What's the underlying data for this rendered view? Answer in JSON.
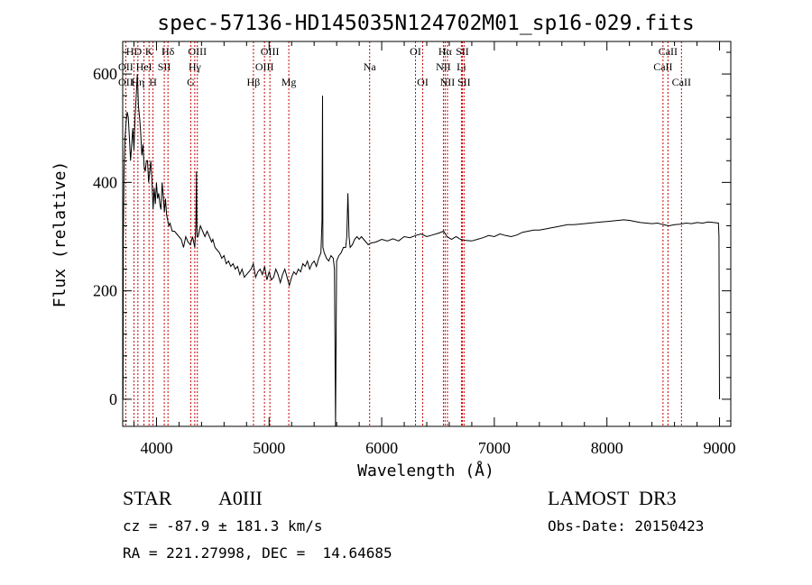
{
  "chart_data": {
    "type": "line",
    "title": "spec-57136-HD145035N124702M01_sp16-029.fits",
    "xlabel": "Wavelength (Å)",
    "ylabel": "Flux (relative)",
    "xlim": [
      3700,
      9100
    ],
    "ylim": [
      -50,
      660
    ],
    "x_ticks": [
      4000,
      5000,
      6000,
      7000,
      8000,
      9000
    ],
    "y_ticks": [
      0,
      200,
      400,
      600
    ],
    "series": [
      {
        "points": [
          [
            3700,
            60
          ],
          [
            3703,
            0
          ],
          [
            3706,
            300
          ],
          [
            3712,
            420
          ],
          [
            3720,
            480
          ],
          [
            3730,
            510
          ],
          [
            3740,
            530
          ],
          [
            3750,
            520
          ],
          [
            3760,
            480
          ],
          [
            3770,
            440
          ],
          [
            3780,
            470
          ],
          [
            3790,
            500
          ],
          [
            3800,
            460
          ],
          [
            3810,
            520
          ],
          [
            3820,
            560
          ],
          [
            3830,
            600
          ],
          [
            3840,
            540
          ],
          [
            3850,
            520
          ],
          [
            3860,
            490
          ],
          [
            3870,
            450
          ],
          [
            3880,
            470
          ],
          [
            3890,
            430
          ],
          [
            3900,
            420
          ],
          [
            3910,
            440
          ],
          [
            3920,
            440
          ],
          [
            3930,
            400
          ],
          [
            3940,
            420
          ],
          [
            3950,
            440
          ],
          [
            3960,
            400
          ],
          [
            3970,
            350
          ],
          [
            3980,
            390
          ],
          [
            3990,
            360
          ],
          [
            4000,
            400
          ],
          [
            4010,
            370
          ],
          [
            4020,
            380
          ],
          [
            4030,
            360
          ],
          [
            4040,
            350
          ],
          [
            4050,
            400
          ],
          [
            4060,
            375
          ],
          [
            4070,
            345
          ],
          [
            4080,
            370
          ],
          [
            4090,
            340
          ],
          [
            4100,
            330
          ],
          [
            4110,
            320
          ],
          [
            4120,
            325
          ],
          [
            4140,
            310
          ],
          [
            4160,
            310
          ],
          [
            4180,
            305
          ],
          [
            4200,
            300
          ],
          [
            4220,
            295
          ],
          [
            4240,
            280
          ],
          [
            4260,
            300
          ],
          [
            4280,
            290
          ],
          [
            4300,
            285
          ],
          [
            4320,
            300
          ],
          [
            4340,
            280
          ],
          [
            4350,
            320
          ],
          [
            4355,
            420
          ],
          [
            4360,
            300
          ],
          [
            4370,
            300
          ],
          [
            4390,
            320
          ],
          [
            4410,
            310
          ],
          [
            4430,
            300
          ],
          [
            4450,
            310
          ],
          [
            4470,
            300
          ],
          [
            4490,
            290
          ],
          [
            4500,
            295
          ],
          [
            4520,
            280
          ],
          [
            4540,
            275
          ],
          [
            4560,
            270
          ],
          [
            4580,
            260
          ],
          [
            4600,
            265
          ],
          [
            4620,
            250
          ],
          [
            4640,
            255
          ],
          [
            4660,
            245
          ],
          [
            4680,
            250
          ],
          [
            4700,
            240
          ],
          [
            4720,
            245
          ],
          [
            4740,
            230
          ],
          [
            4760,
            240
          ],
          [
            4780,
            225
          ],
          [
            4800,
            230
          ],
          [
            4820,
            235
          ],
          [
            4840,
            240
          ],
          [
            4860,
            250
          ],
          [
            4880,
            225
          ],
          [
            4900,
            235
          ],
          [
            4920,
            240
          ],
          [
            4940,
            230
          ],
          [
            4960,
            245
          ],
          [
            4980,
            220
          ],
          [
            5000,
            235
          ],
          [
            5020,
            220
          ],
          [
            5040,
            225
          ],
          [
            5060,
            240
          ],
          [
            5080,
            230
          ],
          [
            5100,
            215
          ],
          [
            5120,
            230
          ],
          [
            5140,
            240
          ],
          [
            5160,
            225
          ],
          [
            5180,
            210
          ],
          [
            5200,
            225
          ],
          [
            5220,
            235
          ],
          [
            5240,
            230
          ],
          [
            5260,
            240
          ],
          [
            5280,
            235
          ],
          [
            5300,
            250
          ],
          [
            5320,
            245
          ],
          [
            5340,
            255
          ],
          [
            5360,
            240
          ],
          [
            5380,
            250
          ],
          [
            5400,
            255
          ],
          [
            5420,
            245
          ],
          [
            5440,
            260
          ],
          [
            5460,
            270
          ],
          [
            5470,
            330
          ],
          [
            5475,
            560
          ],
          [
            5478,
            280
          ],
          [
            5490,
            270
          ],
          [
            5510,
            260
          ],
          [
            5530,
            255
          ],
          [
            5550,
            265
          ],
          [
            5570,
            260
          ],
          [
            5580,
            240
          ],
          [
            5590,
            -50
          ],
          [
            5600,
            255
          ],
          [
            5620,
            265
          ],
          [
            5640,
            270
          ],
          [
            5660,
            280
          ],
          [
            5680,
            280
          ],
          [
            5690,
            300
          ],
          [
            5700,
            380
          ],
          [
            5710,
            300
          ],
          [
            5720,
            280
          ],
          [
            5740,
            285
          ],
          [
            5760,
            295
          ],
          [
            5780,
            300
          ],
          [
            5800,
            295
          ],
          [
            5820,
            300
          ],
          [
            5840,
            295
          ],
          [
            5860,
            290
          ],
          [
            5880,
            285
          ],
          [
            5900,
            288
          ],
          [
            5950,
            290
          ],
          [
            6000,
            295
          ],
          [
            6050,
            292
          ],
          [
            6100,
            296
          ],
          [
            6150,
            292
          ],
          [
            6200,
            300
          ],
          [
            6250,
            298
          ],
          [
            6300,
            302
          ],
          [
            6350,
            305
          ],
          [
            6400,
            300
          ],
          [
            6450,
            303
          ],
          [
            6500,
            306
          ],
          [
            6550,
            310
          ],
          [
            6580,
            300
          ],
          [
            6620,
            295
          ],
          [
            6660,
            300
          ],
          [
            6700,
            295
          ],
          [
            6750,
            293
          ],
          [
            6800,
            292
          ],
          [
            6850,
            295
          ],
          [
            6900,
            298
          ],
          [
            6950,
            302
          ],
          [
            7000,
            300
          ],
          [
            7050,
            305
          ],
          [
            7100,
            302
          ],
          [
            7150,
            300
          ],
          [
            7200,
            303
          ],
          [
            7250,
            308
          ],
          [
            7300,
            310
          ],
          [
            7350,
            312
          ],
          [
            7400,
            312
          ],
          [
            7450,
            314
          ],
          [
            7500,
            316
          ],
          [
            7550,
            318
          ],
          [
            7600,
            320
          ],
          [
            7650,
            322
          ],
          [
            7700,
            322
          ],
          [
            7750,
            323
          ],
          [
            7800,
            324
          ],
          [
            7850,
            325
          ],
          [
            7900,
            326
          ],
          [
            7950,
            327
          ],
          [
            8000,
            328
          ],
          [
            8050,
            329
          ],
          [
            8100,
            330
          ],
          [
            8150,
            331
          ],
          [
            8200,
            330
          ],
          [
            8250,
            328
          ],
          [
            8300,
            326
          ],
          [
            8350,
            325
          ],
          [
            8400,
            324
          ],
          [
            8450,
            325
          ],
          [
            8500,
            322
          ],
          [
            8550,
            320
          ],
          [
            8600,
            322
          ],
          [
            8650,
            323
          ],
          [
            8700,
            325
          ],
          [
            8750,
            324
          ],
          [
            8800,
            326
          ],
          [
            8850,
            325
          ],
          [
            8900,
            327
          ],
          [
            8950,
            326
          ],
          [
            8990,
            325
          ],
          [
            8995,
            300
          ],
          [
            9000,
            0
          ]
        ]
      }
    ],
    "annotations": [
      {
        "label": "HD",
        "x": 3800,
        "row": 1
      },
      {
        "label": "K",
        "x": 3934,
        "row": 1
      },
      {
        "label": "Hδ",
        "x": 4102,
        "row": 1
      },
      {
        "label": "OII",
        "x": 3727,
        "row": 2
      },
      {
        "label": "HeI",
        "x": 3889,
        "row": 2
      },
      {
        "label": "SII",
        "x": 4069,
        "row": 2
      },
      {
        "label": "OII",
        "x": 3727,
        "row": 3
      },
      {
        "label": "Hη",
        "x": 3835,
        "row": 3
      },
      {
        "label": "H",
        "x": 3969,
        "row": 3
      },
      {
        "label": "OIII",
        "x": 4363,
        "row": 1
      },
      {
        "label": "Hγ",
        "x": 4340,
        "row": 2
      },
      {
        "label": "G",
        "x": 4305,
        "row": 3
      },
      {
        "label": "OIII",
        "x": 5007,
        "row": 1
      },
      {
        "label": "OIII",
        "x": 4959,
        "row": 2
      },
      {
        "label": "Hβ",
        "x": 4861,
        "row": 3
      },
      {
        "label": "Mg",
        "x": 5175,
        "row": 3
      },
      {
        "label": "Na",
        "x": 5893,
        "row": 2
      },
      {
        "label": "OI",
        "x": 6300,
        "row": 1
      },
      {
        "label": "OI",
        "x": 6364,
        "row": 3
      },
      {
        "label": "Hα",
        "x": 6563,
        "row": 1
      },
      {
        "label": "SII",
        "x": 6716,
        "row": 1
      },
      {
        "label": "NII",
        "x": 6548,
        "row": 2
      },
      {
        "label": "Li",
        "x": 6708,
        "row": 2
      },
      {
        "label": "NII",
        "x": 6584,
        "row": 3
      },
      {
        "label": "SII",
        "x": 6731,
        "row": 3
      },
      {
        "label": "CaII",
        "x": 8542,
        "row": 1
      },
      {
        "label": "CaII",
        "x": 8498,
        "row": 2
      },
      {
        "label": "CaII",
        "x": 8662,
        "row": 3
      }
    ],
    "line_marker_color": "#cc0000",
    "grid": false
  },
  "info": {
    "object_class": "STAR",
    "subclass": "A0III",
    "survey": "LAMOST  DR3",
    "cz": "cz = -87.9 ± 181.3 km/s",
    "obs_date": "Obs-Date: 20150423",
    "coords": "RA = 221.27998, DEC =  14.64685"
  }
}
